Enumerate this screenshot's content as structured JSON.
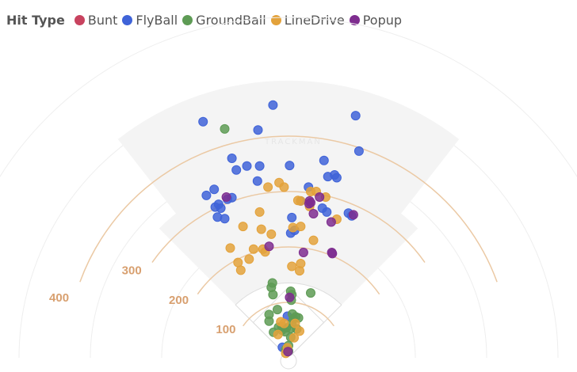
{
  "chart_data": {
    "type": "scatter",
    "title": "",
    "legend_title": "Hit Type",
    "legend_position": "top-left",
    "watermark": "TRACKMAN",
    "distance_labels": [
      "100",
      "200",
      "300",
      "400"
    ],
    "units": "feet",
    "series": [
      {
        "name": "Bunt",
        "color": "#c8435f",
        "points": []
      },
      {
        "name": "FlyBall",
        "color": "#3f63d8",
        "points": [
          [
            -55,
            411
          ],
          [
            -28,
            456
          ],
          [
            2,
            347
          ],
          [
            -56,
            319
          ],
          [
            -75,
            346
          ],
          [
            -52,
            346
          ],
          [
            -94,
            339
          ],
          [
            -102,
            360
          ],
          [
            -154,
            426
          ],
          [
            -148,
            293
          ],
          [
            -134,
            304
          ],
          [
            -126,
            277
          ],
          [
            -102,
            289
          ],
          [
            -115,
            251
          ],
          [
            -128,
            254
          ],
          [
            -122,
            270
          ],
          [
            -132,
            272
          ],
          [
            -110,
            286
          ],
          [
            6,
            253
          ],
          [
            4,
            225
          ],
          [
            11,
            230
          ],
          [
            22,
            283
          ],
          [
            36,
            308
          ],
          [
            64,
            356
          ],
          [
            71,
            327
          ],
          [
            83,
            330
          ],
          [
            61,
            270
          ],
          [
            69,
            263
          ],
          [
            87,
            325
          ],
          [
            121,
            437
          ],
          [
            127,
            373
          ],
          [
            108,
            261
          ],
          [
            114,
            256
          ],
          [
            -2,
            75
          ],
          [
            -11,
            19
          ]
        ]
      },
      {
        "name": "GroundBall",
        "color": "#5e9b55",
        "points": [
          [
            -115,
            413
          ],
          [
            5,
            104
          ],
          [
            0,
            22
          ],
          [
            -5,
            15
          ],
          [
            0,
            12
          ],
          [
            4,
            37
          ],
          [
            4,
            53
          ],
          [
            6,
            62
          ],
          [
            9,
            70
          ],
          [
            13,
            74
          ],
          [
            18,
            72
          ],
          [
            7,
            79
          ],
          [
            -4,
            54
          ],
          [
            -6,
            47
          ],
          [
            -12,
            50
          ],
          [
            -18,
            55
          ],
          [
            -27,
            46
          ],
          [
            -35,
            66
          ],
          [
            -35,
            78
          ],
          [
            -20,
            87
          ],
          [
            -28,
            114
          ],
          [
            -31,
            127
          ],
          [
            -29,
            135
          ],
          [
            -12,
            56
          ],
          [
            15,
            52
          ],
          [
            40,
            117
          ],
          [
            6,
            114
          ],
          [
            4,
            120
          ]
        ]
      },
      {
        "name": "LineDrive",
        "color": "#e3a23b",
        "points": [
          [
            -37,
            308
          ],
          [
            -8,
            308
          ],
          [
            -17,
            316
          ],
          [
            22,
            283
          ],
          [
            17,
            284
          ],
          [
            8,
            235
          ],
          [
            40,
            300
          ],
          [
            50,
            300
          ],
          [
            67,
            290
          ],
          [
            87,
            250
          ],
          [
            38,
            273
          ],
          [
            -82,
            237
          ],
          [
            -105,
            198
          ],
          [
            -63,
            196
          ],
          [
            -86,
            158
          ],
          [
            -91,
            172
          ],
          [
            -71,
            178
          ],
          [
            -46,
            196
          ],
          [
            -42,
            191
          ],
          [
            -31,
            223
          ],
          [
            -49,
            232
          ],
          [
            6,
            165
          ],
          [
            -52,
            263
          ],
          [
            22,
            237
          ],
          [
            20,
            157
          ],
          [
            -14,
            65
          ],
          [
            -5,
            8
          ],
          [
            -2,
            18
          ],
          [
            45,
            212
          ],
          [
            22,
            170
          ],
          [
            -8,
            62
          ],
          [
            10,
            36
          ],
          [
            20,
            48
          ],
          [
            12,
            62
          ],
          [
            -19,
            42
          ]
        ]
      },
      {
        "name": "Popup",
        "color": "#7e2d8f",
        "points": [
          [
            -112,
            290
          ],
          [
            -35,
            201
          ],
          [
            27,
            190
          ],
          [
            40,
            280
          ],
          [
            38,
            283
          ],
          [
            56,
            290
          ],
          [
            117,
            258
          ],
          [
            45,
            260
          ],
          [
            37,
            278
          ],
          [
            77,
            245
          ],
          [
            78,
            190
          ],
          [
            79,
            188
          ],
          [
            2,
            109
          ],
          [
            -1,
            11
          ]
        ]
      }
    ]
  }
}
